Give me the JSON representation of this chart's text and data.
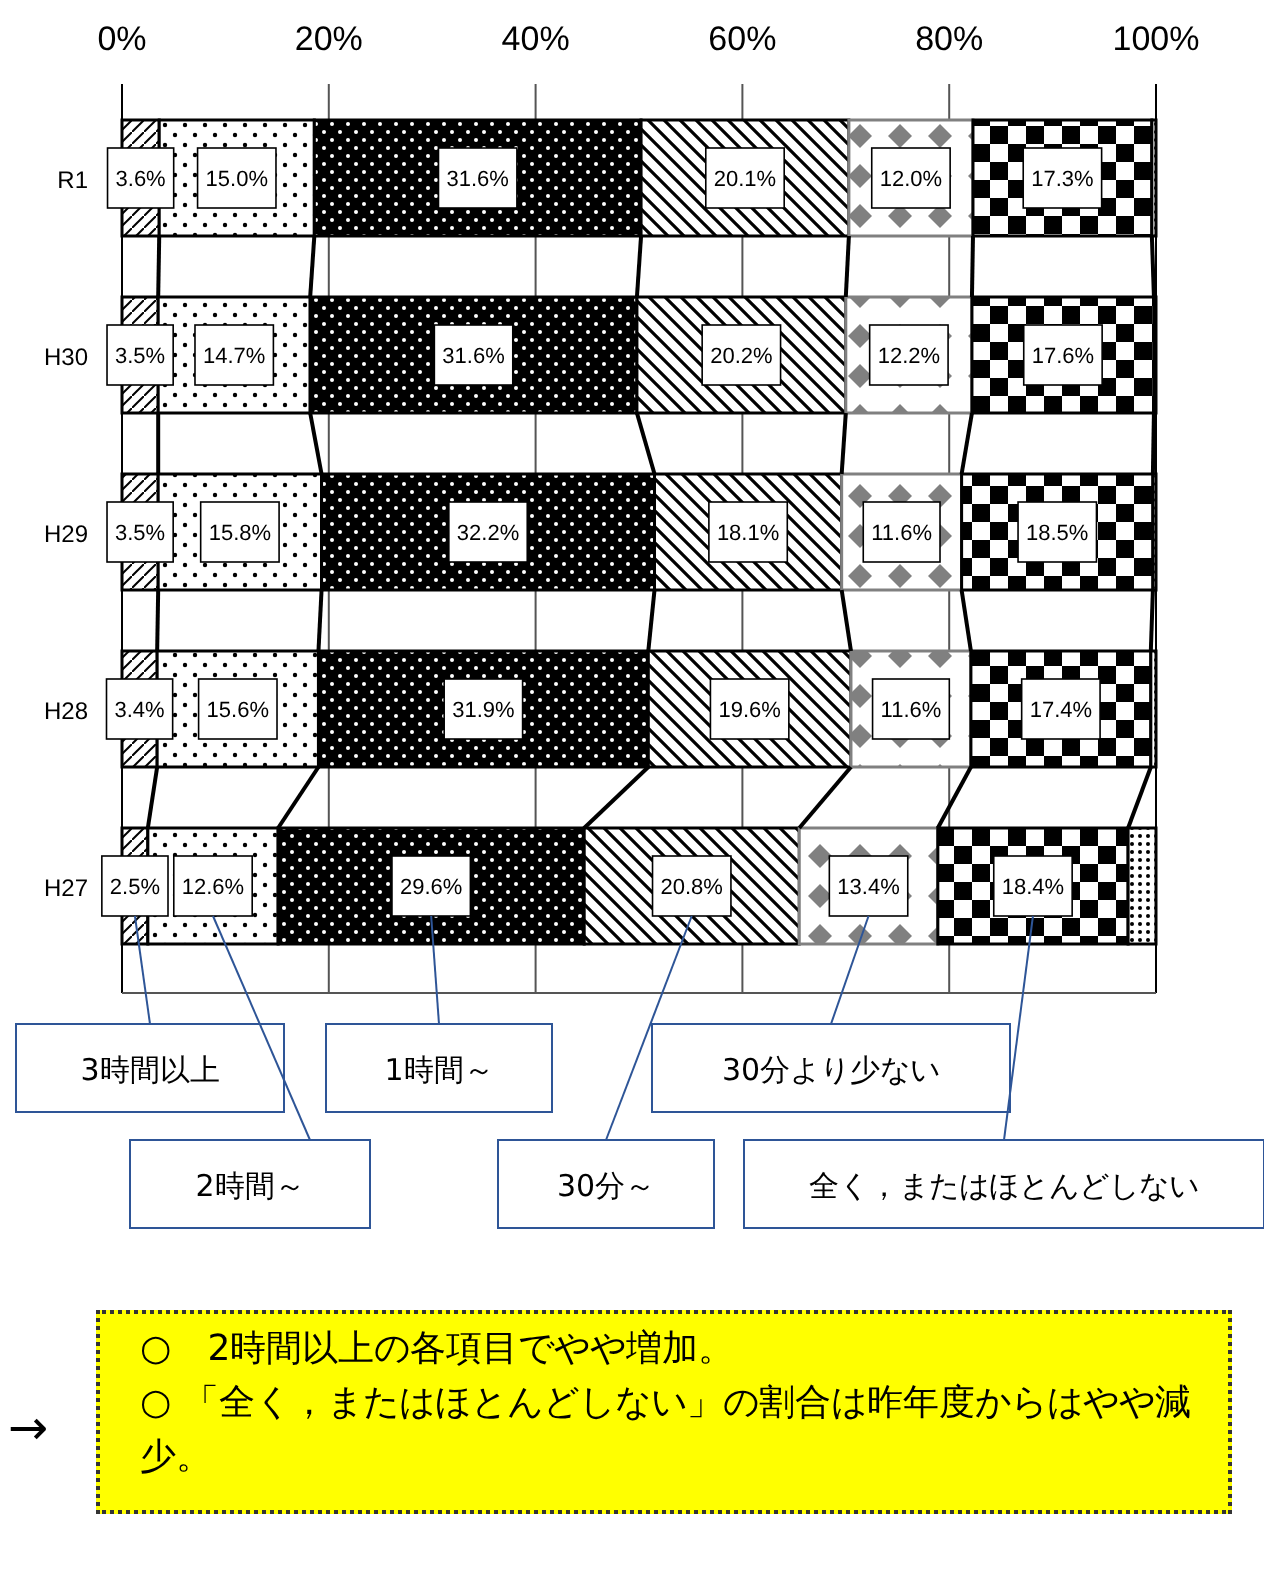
{
  "chart_data": {
    "type": "bar",
    "orientation": "horizontal",
    "stacked": true,
    "categories": [
      "R1",
      "H30",
      "H29",
      "H28",
      "H27"
    ],
    "xlim": [
      0,
      100
    ],
    "xticks": [
      {
        "value": 0,
        "label": "0%"
      },
      {
        "value": 20,
        "label": "20%"
      },
      {
        "value": 40,
        "label": "40%"
      },
      {
        "value": 60,
        "label": "60%"
      },
      {
        "value": 80,
        "label": "80%"
      },
      {
        "value": 100,
        "label": "100%"
      }
    ],
    "grid": "x",
    "legend": "bottom",
    "series": [
      {
        "name": "3時間以上",
        "color": "#000000",
        "values": [
          3.6,
          3.5,
          3.5,
          3.4,
          2.5
        ],
        "value_labels": [
          "3.6%",
          "3.5%",
          "3.5%",
          "3.4%",
          "2.5%"
        ]
      },
      {
        "name": "2時間～",
        "color": "#000000",
        "values": [
          15.0,
          14.7,
          15.8,
          15.6,
          12.6
        ],
        "value_labels": [
          "15.0%",
          "14.7%",
          "15.8%",
          "15.6%",
          "12.6%"
        ]
      },
      {
        "name": "1時間～",
        "color": "#000000",
        "values": [
          31.6,
          31.6,
          32.2,
          31.9,
          29.6
        ],
        "value_labels": [
          "31.6%",
          "31.6%",
          "32.2%",
          "31.9%",
          "29.6%"
        ]
      },
      {
        "name": "30分～",
        "color": "#000000",
        "values": [
          20.1,
          20.2,
          18.1,
          19.6,
          20.8
        ],
        "value_labels": [
          "20.1%",
          "20.2%",
          "18.1%",
          "19.6%",
          "20.8%"
        ]
      },
      {
        "name": "30分より少ない",
        "color": "#808080",
        "values": [
          12.0,
          12.2,
          11.6,
          11.6,
          13.4
        ],
        "value_labels": [
          "12.0%",
          "12.2%",
          "11.6%",
          "11.6%",
          "13.4%"
        ]
      },
      {
        "name": "全く，またはほとんどしない",
        "color": "#000000",
        "values": [
          17.3,
          17.6,
          18.5,
          17.4,
          18.4
        ],
        "value_labels": [
          "17.3%",
          "17.6%",
          "18.5%",
          "17.4%",
          "18.4%"
        ]
      },
      {
        "color": "#000000",
        "values": [
          0.4,
          0.2,
          0.3,
          0.5,
          2.7
        ],
        "value_labels": [
          null,
          null,
          null,
          null,
          null
        ]
      }
    ],
    "annotations": [
      "→",
      "○　2時間以上の各項目でやや増加。",
      "○ 「全く，またはほとんどしない」の割合は昨年度からはやや減少。"
    ]
  }
}
